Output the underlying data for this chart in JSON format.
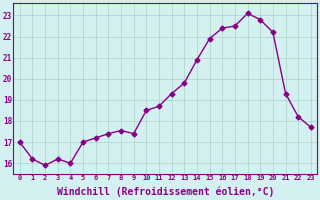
{
  "x": [
    0,
    1,
    2,
    3,
    4,
    5,
    6,
    7,
    8,
    9,
    10,
    11,
    12,
    13,
    14,
    15,
    16,
    17,
    18,
    19,
    20,
    21,
    22,
    23
  ],
  "y": [
    17.0,
    16.2,
    15.9,
    16.2,
    16.0,
    17.0,
    17.2,
    17.4,
    17.55,
    17.4,
    18.5,
    18.7,
    19.3,
    19.8,
    20.9,
    21.9,
    22.4,
    22.5,
    23.1,
    22.8,
    22.2,
    19.3,
    18.2,
    17.7
  ],
  "line_color": "#880088",
  "marker": "D",
  "markersize": 2.5,
  "linewidth": 1.0,
  "xlabel": "Windchill (Refroidissement éolien,°C)",
  "xlabel_fontsize": 7,
  "ylabel_ticks": [
    16,
    17,
    18,
    19,
    20,
    21,
    22,
    23
  ],
  "xtick_labels": [
    "0",
    "1",
    "2",
    "3",
    "4",
    "5",
    "6",
    "7",
    "8",
    "9",
    "10",
    "11",
    "12",
    "13",
    "14",
    "15",
    "16",
    "17",
    "18",
    "19",
    "20",
    "21",
    "22",
    "23"
  ],
  "ylim": [
    15.5,
    23.6
  ],
  "xlim": [
    -0.5,
    23.5
  ],
  "bg_color": "#d4f0f0",
  "grid_color": "#b0d8d0",
  "spine_color": "#880088"
}
